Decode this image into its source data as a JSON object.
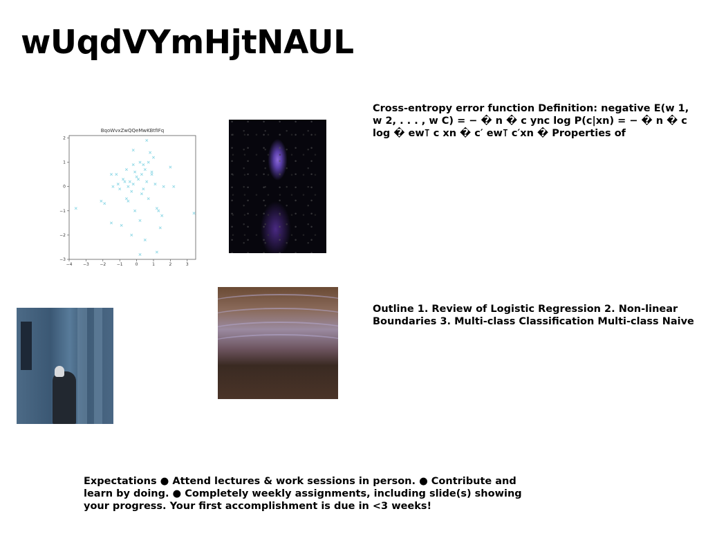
{
  "slide": {
    "title": "wUqdVYmHjtNAUL",
    "text_blocks": [
      "Cross-entropy error function Definition: negative E(w 1, w 2, . . . , w C) = − � n � c ync log P(c|xn) = − � n � c log � ew⊺ c xn � c′ ew⊺ c′xn � Properties of",
      "Outline 1. Review of Logistic Regression 2. Non-linear Boundaries 3. Multi-class Classification Multi-class Naive",
      "Expectations ● Attend lectures & work sessions in person. ● Contribute and learn by doing. ● Completely weekly assignments, including slide(s) showing your progress. Your first accomplishment is due in <3 weeks!"
    ]
  },
  "chart_data": {
    "type": "scatter",
    "title": "BqoWvxZwQQeMwKBtfIFq",
    "xlabel": "",
    "ylabel": "",
    "xlim": [
      -4,
      3.5
    ],
    "ylim": [
      -3,
      2.1
    ],
    "xticks": [
      "−4",
      "−3",
      "−2",
      "−1",
      "0",
      "1",
      "2",
      "3"
    ],
    "yticks": [
      "2",
      "1",
      "0",
      "−1",
      "−2",
      "−3"
    ],
    "marker": "x",
    "color": "#8fd8e6",
    "grid": false,
    "points": [
      [
        -3.6,
        -0.9
      ],
      [
        -2.1,
        -0.6
      ],
      [
        -1.9,
        -0.7
      ],
      [
        -1.5,
        0.5
      ],
      [
        -1.2,
        0.5
      ],
      [
        -1.4,
        0
      ],
      [
        -1.0,
        -0.1
      ],
      [
        -0.8,
        0.3
      ],
      [
        -0.7,
        0.2
      ],
      [
        -0.6,
        -0.5
      ],
      [
        -0.5,
        0
      ],
      [
        -0.4,
        0.2
      ],
      [
        -0.3,
        -0.2
      ],
      [
        -0.2,
        0.9
      ],
      [
        -0.1,
        0.6
      ],
      [
        0,
        0.4
      ],
      [
        0.1,
        0.3
      ],
      [
        0.2,
        1.0
      ],
      [
        0.3,
        0.5
      ],
      [
        0.4,
        -0.1
      ],
      [
        0.5,
        0.7
      ],
      [
        0.6,
        0.2
      ],
      [
        0.7,
        1.0
      ],
      [
        0.8,
        1.4
      ],
      [
        0.9,
        0.5
      ],
      [
        1.0,
        1.2
      ],
      [
        1.2,
        -0.9
      ],
      [
        1.3,
        -1.0
      ],
      [
        1.5,
        -1.2
      ],
      [
        1.6,
        0
      ],
      [
        2.0,
        0.8
      ],
      [
        2.2,
        0
      ],
      [
        3.4,
        -1.1
      ],
      [
        -0.9,
        -1.6
      ],
      [
        -0.3,
        -2.0
      ],
      [
        0.5,
        -2.2
      ],
      [
        0.2,
        -2.8
      ],
      [
        1.2,
        -2.7
      ],
      [
        -1.5,
        -1.5
      ],
      [
        -0.2,
        1.5
      ],
      [
        0.6,
        1.9
      ],
      [
        -0.5,
        -0.6
      ],
      [
        0.3,
        -0.3
      ],
      [
        0.7,
        -0.5
      ],
      [
        -0.1,
        -1.0
      ],
      [
        0.9,
        0.6
      ],
      [
        0.4,
        0.9
      ],
      [
        -0.6,
        0.7
      ],
      [
        1.1,
        0.1
      ],
      [
        -0.2,
        0.1
      ],
      [
        0.2,
        -1.4
      ],
      [
        -1.1,
        0.1
      ],
      [
        1.4,
        -1.7
      ]
    ]
  },
  "images": [
    {
      "name": "nebula-photo",
      "description": "dark starfield with purple nebula"
    },
    {
      "name": "man-by-building-photo",
      "description": "person in hooded coat beside stone building"
    },
    {
      "name": "sand-dunes-photo",
      "description": "wavy brown and lavender dunes"
    }
  ]
}
